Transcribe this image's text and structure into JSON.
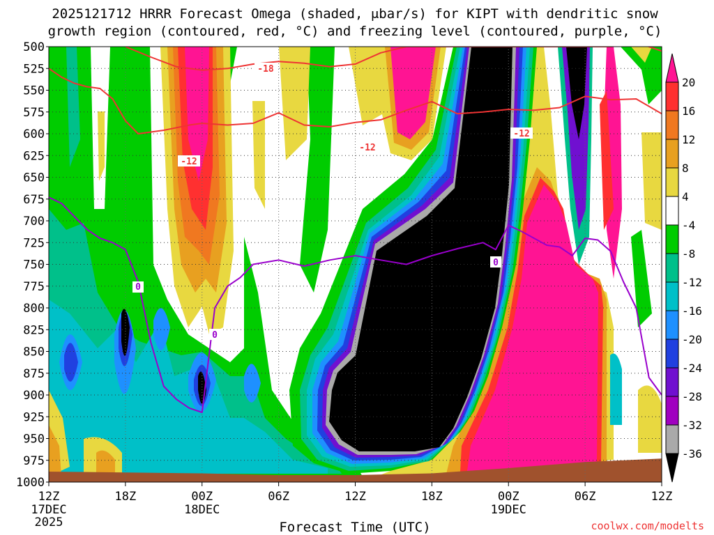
{
  "chart_data": {
    "type": "heatmap",
    "title_line1": "2025121712 HRRR Forecast Omega (shaded, μbar/s) for KIPT with dendritic snow",
    "title_line2": "growth region (contoured, red, °C) and freezing level (contoured, purple, °C)",
    "xlabel": "Forecast Time (UTC)",
    "watermark": "coolwx.com/modelts",
    "x_range_hours": [
      0,
      48
    ],
    "y_range_mb": [
      500,
      1000
    ],
    "y_ticks": [
      500,
      525,
      550,
      575,
      600,
      625,
      650,
      675,
      700,
      725,
      750,
      775,
      800,
      825,
      850,
      875,
      900,
      925,
      950,
      975,
      1000
    ],
    "y_tick_labels": [
      "500",
      "525",
      "550",
      "575",
      "600",
      "625",
      "650",
      "675",
      "700",
      "725",
      "750",
      "775",
      "800",
      "825",
      "850",
      "875",
      "900",
      "925",
      "950",
      "975",
      "1000"
    ],
    "x_ticks": [
      {
        "hour": 0,
        "label": "12Z",
        "date": "17DEC",
        "year": "2025"
      },
      {
        "hour": 6,
        "label": "18Z"
      },
      {
        "hour": 12,
        "label": "00Z",
        "date": "18DEC"
      },
      {
        "hour": 18,
        "label": "06Z"
      },
      {
        "hour": 24,
        "label": "12Z"
      },
      {
        "hour": 30,
        "label": "18Z"
      },
      {
        "hour": 36,
        "label": "00Z",
        "date": "19DEC"
      },
      {
        "hour": 42,
        "label": "06Z"
      },
      {
        "hour": 48,
        "label": "12Z"
      }
    ],
    "colorbar": {
      "labels": [
        "20",
        "16",
        "12",
        "8",
        "4",
        "-4",
        "-8",
        "-12",
        "-16",
        "-20",
        "-24",
        "-28",
        "-32",
        "-36"
      ],
      "bands": [
        {
          "from": 20,
          "to": 24,
          "color": "#ff1493"
        },
        {
          "from": 16,
          "to": 20,
          "color": "#ff3030"
        },
        {
          "from": 12,
          "to": 16,
          "color": "#f07820"
        },
        {
          "from": 8,
          "to": 12,
          "color": "#e8a020"
        },
        {
          "from": 4,
          "to": 8,
          "color": "#e8d840"
        },
        {
          "from": -4,
          "to": 4,
          "color": "#ffffff"
        },
        {
          "from": -8,
          "to": -4,
          "color": "#00cc00"
        },
        {
          "from": -12,
          "to": -8,
          "color": "#00c08a"
        },
        {
          "from": -16,
          "to": -12,
          "color": "#00c0c8"
        },
        {
          "from": -20,
          "to": -16,
          "color": "#1e90ff"
        },
        {
          "from": -24,
          "to": -20,
          "color": "#2040e0"
        },
        {
          "from": -28,
          "to": -24,
          "color": "#7010d0"
        },
        {
          "from": -32,
          "to": -28,
          "color": "#a000c0"
        },
        {
          "from": -36,
          "to": -32,
          "color": "#aaaaaa"
        },
        {
          "from": -40,
          "to": -36,
          "color": "#000000"
        }
      ]
    },
    "contour_labels": {
      "red": [
        "-18",
        "-12",
        "-12",
        "-12"
      ],
      "purple": [
        "0",
        "0",
        "0"
      ]
    },
    "series": [
      {
        "name": "-12C isotherm (red)",
        "color": "#ee3333",
        "x": [
          0,
          1,
          2,
          3,
          4,
          5,
          6,
          7,
          8,
          9,
          10,
          11,
          12,
          14,
          16,
          18,
          20,
          22,
          24,
          26,
          28,
          30,
          32,
          34,
          36,
          38,
          40,
          42,
          44,
          46,
          48
        ],
        "y": [
          525,
          535,
          542,
          546,
          548,
          560,
          585,
          600,
          598,
          596,
          593,
          590,
          588,
          590,
          588,
          576,
          590,
          592,
          587,
          584,
          573,
          563,
          577,
          575,
          572,
          573,
          570,
          557,
          561,
          560,
          577
        ]
      },
      {
        "name": "-18C isotherm (red)",
        "color": "#ee3333",
        "x": [
          6,
          8,
          10,
          12,
          14,
          16,
          18,
          20,
          22,
          24,
          26,
          28,
          30,
          32,
          34,
          36,
          38,
          40,
          42,
          44,
          46,
          48
        ],
        "y": [
          500,
          512,
          523,
          527,
          525,
          520,
          517,
          519,
          523,
          520,
          507,
          500,
          500,
          500,
          500,
          500,
          500,
          500,
          500,
          500,
          495,
          505
        ]
      },
      {
        "name": "0C freezing level (purple)",
        "color": "#9900cc",
        "x": [
          0,
          1,
          2,
          3,
          4,
          5,
          6,
          7,
          8,
          9,
          10,
          11,
          12,
          13,
          14,
          15,
          16,
          18,
          20,
          22,
          24,
          26,
          28,
          30,
          32,
          34,
          35,
          36,
          37,
          38,
          39,
          40,
          41,
          42,
          43,
          44,
          45,
          46,
          47,
          48
        ],
        "y": [
          673,
          680,
          695,
          710,
          720,
          725,
          733,
          770,
          840,
          890,
          905,
          915,
          920,
          800,
          775,
          765,
          750,
          745,
          752,
          745,
          740,
          745,
          750,
          740,
          732,
          725,
          733,
          705,
          712,
          720,
          728,
          730,
          740,
          720,
          722,
          735,
          770,
          800,
          880,
          900
        ]
      }
    ],
    "surface_pressure_mb": {
      "x": [
        0,
        6,
        12,
        18,
        24,
        30,
        36,
        42,
        48
      ],
      "y": [
        988,
        989,
        990,
        992,
        992,
        990,
        984,
        977,
        973
      ]
    }
  }
}
